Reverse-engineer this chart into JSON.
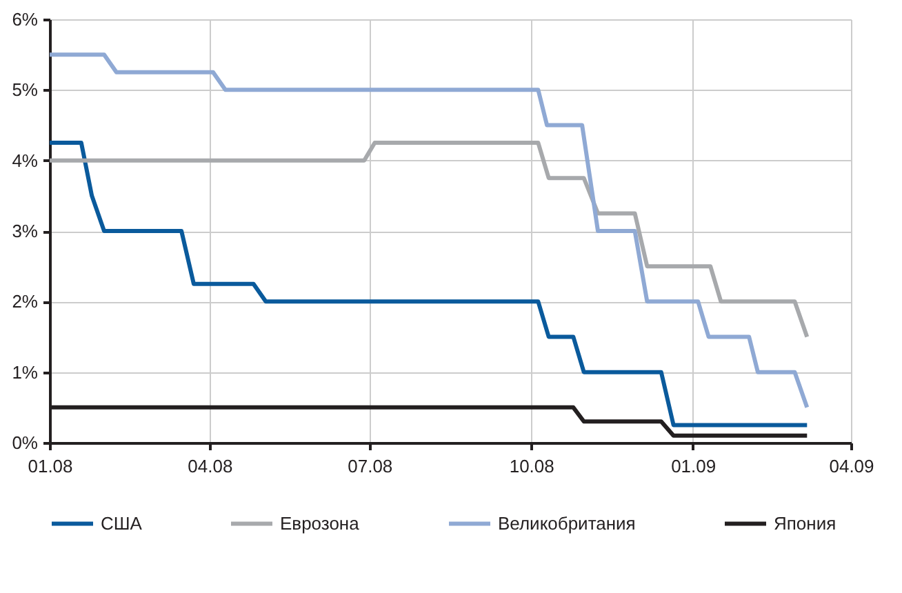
{
  "chart_data": {
    "type": "line",
    "xlim": [
      "2008-01-01",
      "2009-04-01"
    ],
    "ylim": [
      0,
      6
    ],
    "xticks": [
      {
        "value": "2008-01",
        "label": "01.08"
      },
      {
        "value": "2008-04",
        "label": "04.08"
      },
      {
        "value": "2008-07",
        "label": "07.08"
      },
      {
        "value": "2008-10",
        "label": "10.08"
      },
      {
        "value": "2009-01",
        "label": "01.09"
      },
      {
        "value": "2009-04",
        "label": "04.09"
      }
    ],
    "yticks": [
      {
        "value": 0,
        "label": "0%"
      },
      {
        "value": 1,
        "label": "1%"
      },
      {
        "value": 2,
        "label": "2%"
      },
      {
        "value": 3,
        "label": "3%"
      },
      {
        "value": 4,
        "label": "4%"
      },
      {
        "value": 5,
        "label": "5%"
      },
      {
        "value": 6,
        "label": "6%"
      }
    ],
    "grid": true,
    "legend": "bottom",
    "line_style": "solid",
    "series": [
      {
        "name": "США",
        "color": "#0a5a9c",
        "x": [
          "2008-01-01",
          "2008-01-19",
          "2008-01-25",
          "2008-02-01",
          "2008-03-16",
          "2008-03-23",
          "2008-04-26",
          "2008-05-03",
          "2008-10-05",
          "2008-10-11",
          "2008-10-25",
          "2008-10-31",
          "2008-12-14",
          "2008-12-21",
          "2009-03-07"
        ],
        "values": [
          4.25,
          4.25,
          3.5,
          3.0,
          3.0,
          2.25,
          2.25,
          2.0,
          2.0,
          1.5,
          1.5,
          1.0,
          1.0,
          0.25,
          0.25
        ]
      },
      {
        "name": "Еврозона",
        "color": "#a7a9ac",
        "x": [
          "2008-01-01",
          "2008-06-28",
          "2008-07-04",
          "2008-10-05",
          "2008-10-11",
          "2008-10-31",
          "2008-11-08",
          "2008-11-29",
          "2008-12-06",
          "2009-01-11",
          "2009-01-17",
          "2009-02-28",
          "2009-03-07"
        ],
        "values": [
          4.0,
          4.0,
          4.25,
          4.25,
          3.75,
          3.75,
          3.25,
          3.25,
          2.5,
          2.5,
          2.0,
          2.0,
          1.5
        ]
      },
      {
        "name": "Великобритания",
        "color": "#8fa9d4",
        "x": [
          "2008-01-01",
          "2008-02-01",
          "2008-02-08",
          "2008-04-03",
          "2008-04-10",
          "2008-10-05",
          "2008-10-10",
          "2008-10-30",
          "2008-11-08",
          "2008-11-29",
          "2008-12-06",
          "2009-01-04",
          "2009-01-10",
          "2009-02-02",
          "2009-02-07",
          "2009-02-28",
          "2009-03-07"
        ],
        "values": [
          5.5,
          5.5,
          5.25,
          5.25,
          5.0,
          5.0,
          4.5,
          4.5,
          3.0,
          3.0,
          2.0,
          2.0,
          1.5,
          1.5,
          1.0,
          1.0,
          0.5
        ]
      },
      {
        "name": "Япония",
        "color": "#231f20",
        "x": [
          "2008-01-01",
          "2008-10-25",
          "2008-10-31",
          "2008-12-14",
          "2008-12-21",
          "2009-03-07"
        ],
        "values": [
          0.5,
          0.5,
          0.3,
          0.3,
          0.1,
          0.1
        ]
      }
    ]
  }
}
